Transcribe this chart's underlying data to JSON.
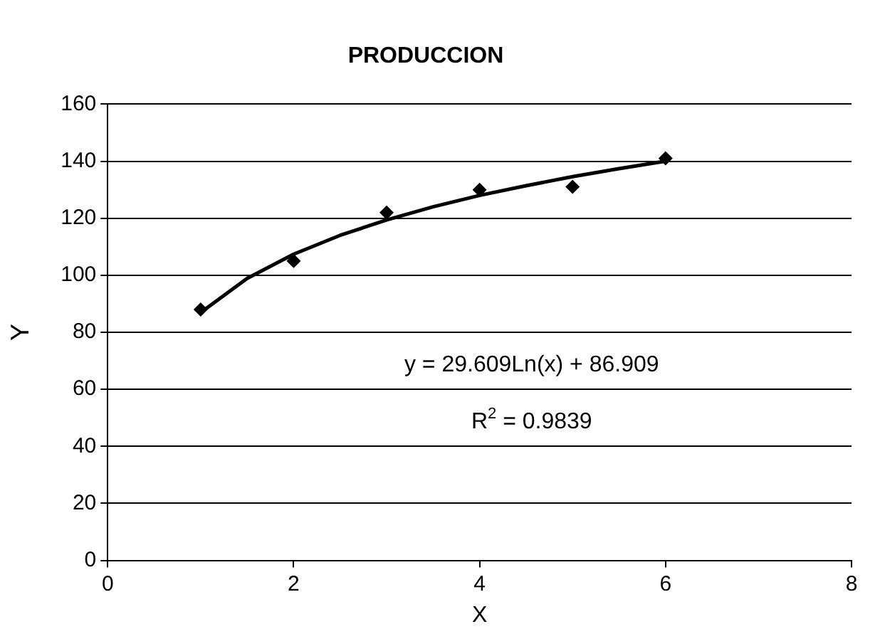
{
  "chart_data": {
    "type": "scatter",
    "title": "PRODUCCION",
    "xlabel": "X",
    "ylabel": "Y",
    "xlim": [
      0,
      8
    ],
    "xticks": [
      0,
      2,
      4,
      6,
      8
    ],
    "ylim": [
      0,
      160
    ],
    "yticks": [
      0,
      20,
      40,
      60,
      80,
      100,
      120,
      140,
      160
    ],
    "grid": "y",
    "legend": false,
    "marker": "diamond",
    "series": [
      {
        "color": "#000000",
        "x": [
          1,
          2,
          3,
          4,
          5,
          6
        ],
        "values": [
          88,
          105,
          122,
          130,
          131,
          141
        ]
      },
      {
        "type": "line",
        "color": "#000000",
        "marker": "none",
        "line_style": "solid",
        "x": [
          1,
          1.5,
          2,
          2.5,
          3,
          3.5,
          4,
          4.5,
          5,
          5.5,
          6
        ],
        "values": [
          86.9,
          98.9,
          107.4,
          114.0,
          119.4,
          124.0,
          128.0,
          131.4,
          134.6,
          137.4,
          140.0
        ]
      }
    ],
    "annotations": [
      "y = 29.609Ln(x) + 86.909",
      "R$^{2}$ = 0.9839"
    ]
  }
}
